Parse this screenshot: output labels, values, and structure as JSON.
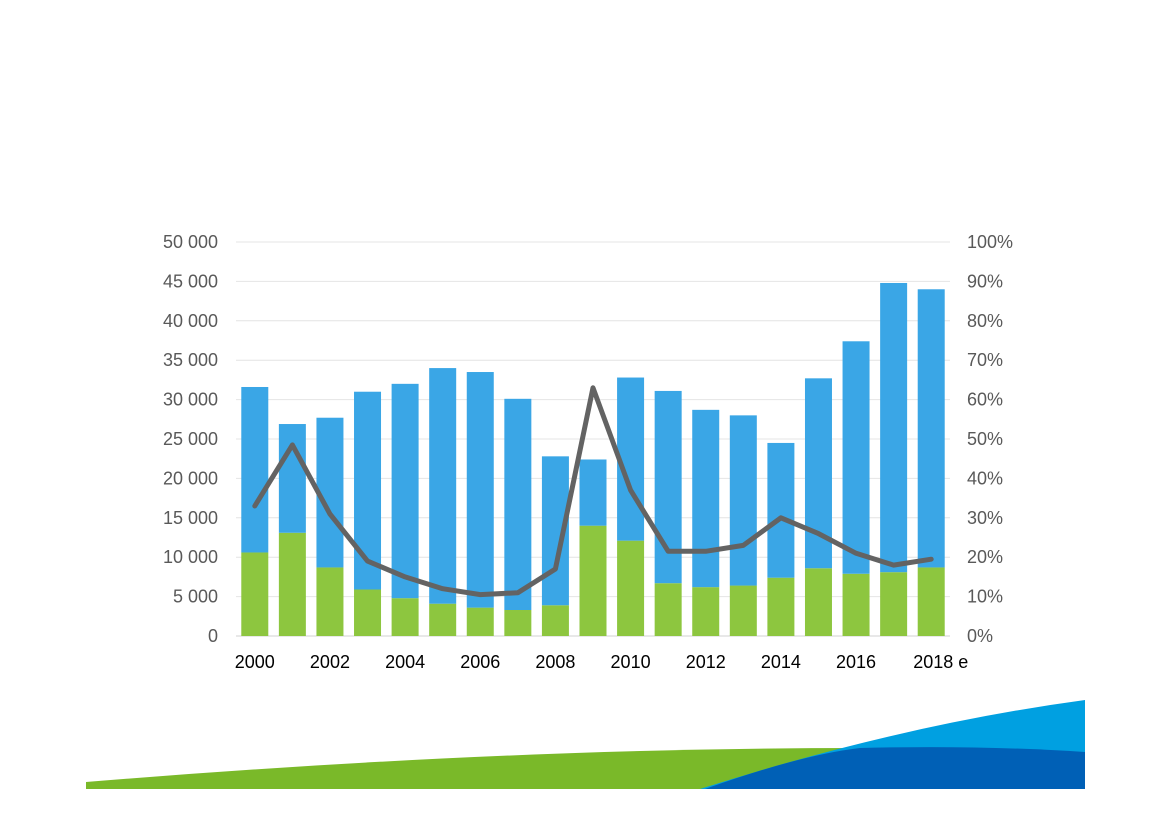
{
  "chart_data": {
    "type": "bar",
    "stacked": true,
    "categories": [
      "2000",
      "2001",
      "2002",
      "2003",
      "2004",
      "2005",
      "2006",
      "2007",
      "2008",
      "2009",
      "2010",
      "2011",
      "2012",
      "2013",
      "2014",
      "2015",
      "2016",
      "2017",
      "2018 e"
    ],
    "x_tick_labels": [
      "2000",
      "2002",
      "2004",
      "2006",
      "2008",
      "2010",
      "2012",
      "2014",
      "2016",
      "2018 e"
    ],
    "y_ticks": [
      "0",
      "5 000",
      "10 000",
      "15 000",
      "20 000",
      "25 000",
      "30 000",
      "35 000",
      "40 000",
      "45 000",
      "50 000"
    ],
    "y2_ticks": [
      "0%",
      "10%",
      "20%",
      "30%",
      "40%",
      "50%",
      "60%",
      "70%",
      "80%",
      "90%",
      "100%"
    ],
    "ylim": [
      0,
      50000
    ],
    "y2lim": [
      0,
      100
    ],
    "grid": true,
    "series": [
      {
        "kind": "bar",
        "axis": "left",
        "color": "#8dc63f",
        "values": [
          10600,
          13100,
          8700,
          5900,
          4800,
          4100,
          3600,
          3300,
          3900,
          14000,
          12100,
          6700,
          6200,
          6400,
          7400,
          8600,
          7900,
          8100,
          8700
        ]
      },
      {
        "kind": "bar",
        "axis": "left",
        "color": "#3aa6e6",
        "values": [
          21000,
          13800,
          19000,
          25100,
          27200,
          29900,
          29900,
          26800,
          18900,
          8400,
          20700,
          24400,
          22500,
          21600,
          17100,
          24100,
          29500,
          36700,
          35300
        ]
      },
      {
        "kind": "line",
        "axis": "right",
        "color": "#636363",
        "values": [
          33,
          48.5,
          31,
          19,
          15,
          12,
          10.5,
          11,
          17,
          63,
          37,
          21.5,
          21.5,
          23,
          30,
          26,
          21,
          18,
          19.5
        ]
      }
    ]
  },
  "decor": {
    "green": "#7ab929",
    "light_blue": "#00a0e1",
    "dark_blue": "#0060b6"
  }
}
